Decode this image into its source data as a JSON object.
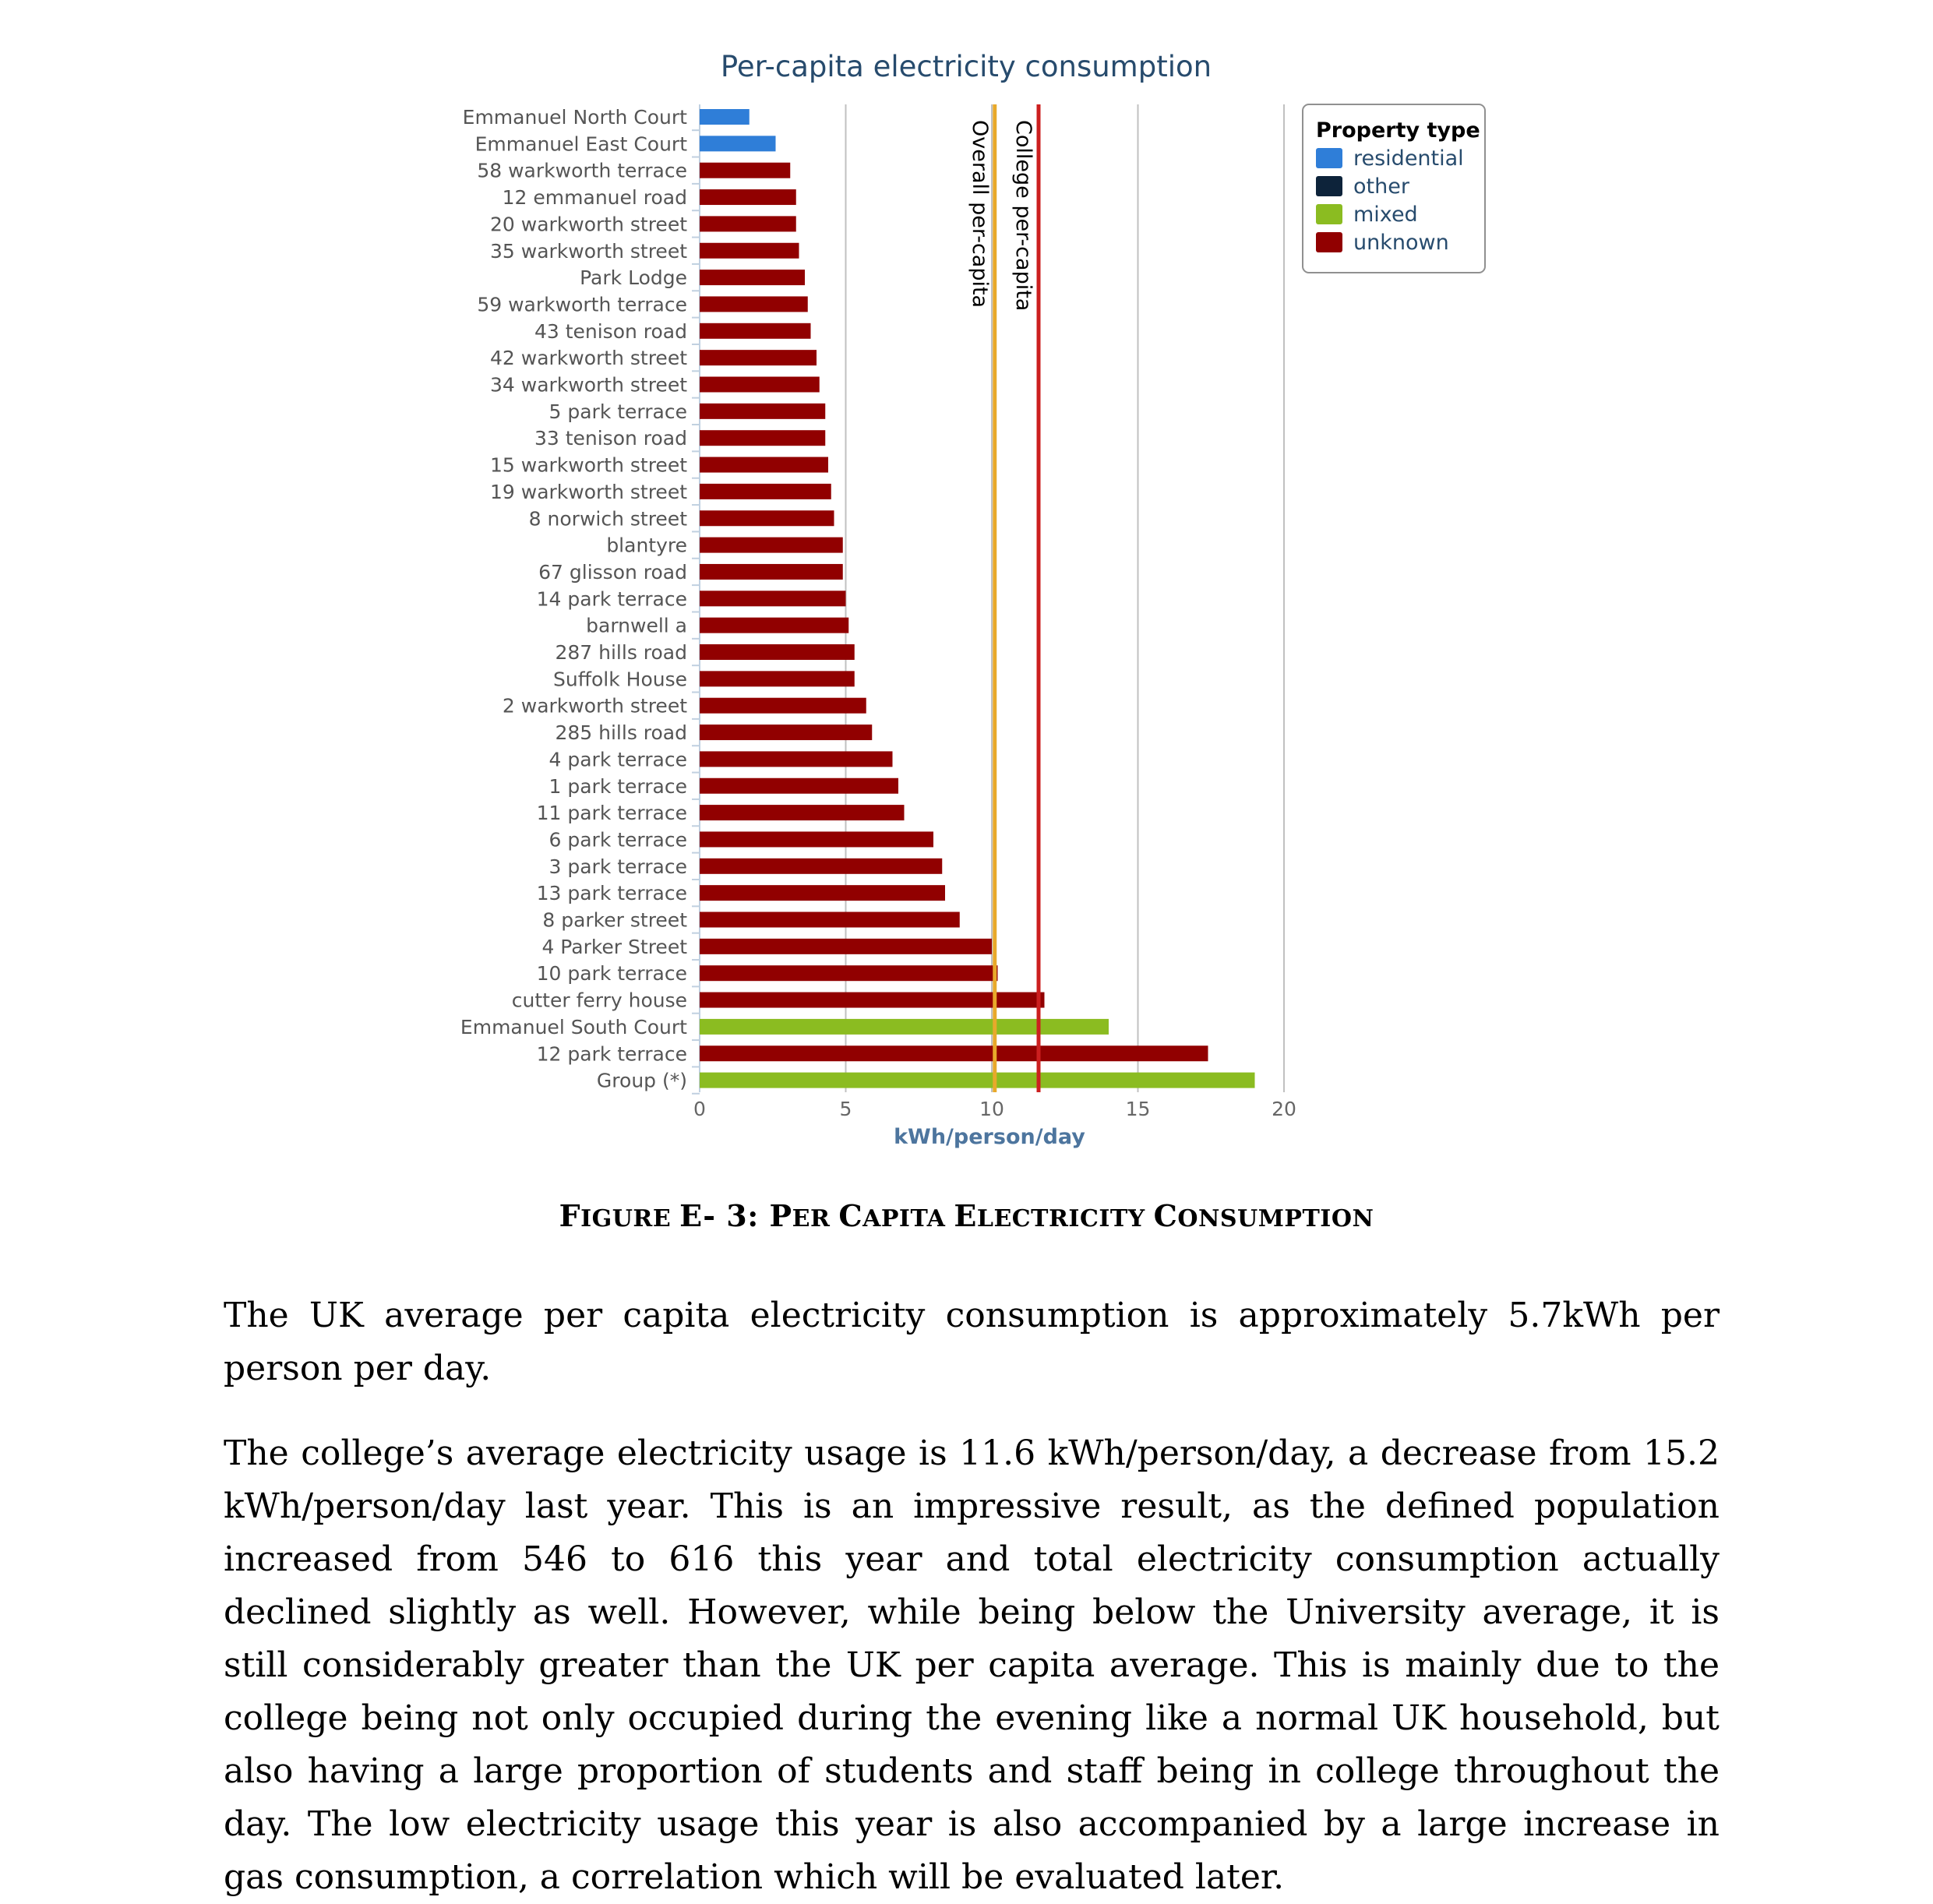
{
  "chart_data": {
    "type": "bar",
    "orientation": "horizontal",
    "title": "Per-capita electricity consumption",
    "xlabel": "kWh/person/day",
    "xlim": [
      0,
      20
    ],
    "xticks": [
      "0",
      "5",
      "10",
      "15",
      "20"
    ],
    "grid": "vertical",
    "legend_position": "top-right",
    "legend": {
      "title": "Property type",
      "items": [
        {
          "label": "residential",
          "color": "#2f7ed8"
        },
        {
          "label": "other",
          "color": "#0d233a"
        },
        {
          "label": "mixed",
          "color": "#8bbc21"
        },
        {
          "label": "unknown",
          "color": "#910000"
        }
      ]
    },
    "reference_lines": [
      {
        "label": "Overall per-capita",
        "value": 10.1,
        "color": "#e8a92b"
      },
      {
        "label": "College per-capita",
        "value": 11.6,
        "color": "#cc1f1f"
      }
    ],
    "categories": [
      "Emmanuel North Court",
      "Emmanuel East Court",
      "58 warkworth terrace",
      "12 emmanuel road",
      "20 warkworth street",
      "35 warkworth street",
      "Park Lodge",
      "59 warkworth terrace",
      "43 tenison road",
      "42 warkworth street",
      "34 warkworth street",
      "5 park terrace",
      "33 tenison road",
      "15 warkworth street",
      "19 warkworth street",
      "8 norwich street",
      "blantyre",
      "67 glisson road",
      "14 park terrace",
      "barnwell a",
      "287 hills road",
      "Suffolk House",
      "2 warkworth street",
      "285 hills road",
      "4 park terrace",
      "1 park terrace",
      "11 park terrace",
      "6 park terrace",
      "3 park terrace",
      "13 park terrace",
      "8 parker street",
      "4 Parker Street",
      "10 park terrace",
      "cutter ferry house",
      "Emmanuel South Court",
      "12 park terrace",
      "Group (*)"
    ],
    "values": [
      1.7,
      2.6,
      3.1,
      3.3,
      3.3,
      3.4,
      3.6,
      3.7,
      3.8,
      4.0,
      4.1,
      4.3,
      4.3,
      4.4,
      4.5,
      4.6,
      4.9,
      4.9,
      5.0,
      5.1,
      5.3,
      5.3,
      5.7,
      5.9,
      6.6,
      6.8,
      7.0,
      8.0,
      8.3,
      8.4,
      8.9,
      10.0,
      10.2,
      11.8,
      14.0,
      17.4,
      19.0
    ],
    "property_types": [
      "residential",
      "residential",
      "unknown",
      "unknown",
      "unknown",
      "unknown",
      "unknown",
      "unknown",
      "unknown",
      "unknown",
      "unknown",
      "unknown",
      "unknown",
      "unknown",
      "unknown",
      "unknown",
      "unknown",
      "unknown",
      "unknown",
      "unknown",
      "unknown",
      "unknown",
      "unknown",
      "unknown",
      "unknown",
      "unknown",
      "unknown",
      "unknown",
      "unknown",
      "unknown",
      "unknown",
      "unknown",
      "unknown",
      "unknown",
      "mixed",
      "unknown",
      "mixed"
    ]
  },
  "caption": {
    "lead": "F",
    "part1": "IGURE ",
    "mid": "E- 3: P",
    "part2": "ER ",
    "c": "C",
    "part3": "APITA ",
    "e": "E",
    "part4": "LECTRICITY ",
    "c2": "C",
    "part5": "ONSUMPTION"
  },
  "body": {
    "paragraph_1": "The UK average per capita electricity consumption is approximately 5.7kWh per person per day.",
    "paragraph_2": "The college’s average electricity usage is 11.6 kWh/person/day, a decrease from 15.2 kWh/person/day last year. This is an impressive result, as the defined population increased from 546 to 616 this year and total electricity consumption actually declined slightly as well. However, while being below the University average, it is still considerably greater than the UK per capita average. This is mainly due to the college being not only occupied during the evening like a normal UK household, but also having a large proportion of students and staff being in college throughout the day. The low electricity usage this year is also accompanied by a large increase in gas consumption, a correlation which will be evaluated later."
  }
}
